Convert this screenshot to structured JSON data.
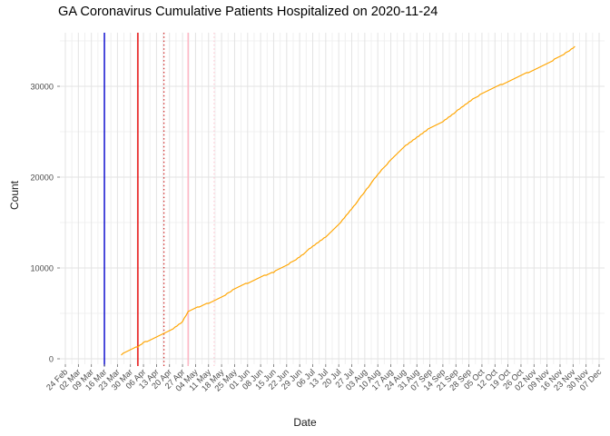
{
  "title": "GA Coronavirus Cumulative Patients Hospitalized on 2020-11-24",
  "chart_data": {
    "type": "line",
    "title": "GA Coronavirus Cumulative Patients Hospitalized on 2020-11-24",
    "xlabel": "Date",
    "ylabel": "Count",
    "x_range": [
      "2020-02-24",
      "2020-12-07"
    ],
    "ylim": [
      0,
      36000
    ],
    "grid": "major and minor, light gray, weekly x majors, y majors every 10000 with minors every 5000",
    "legend": "none",
    "x_tick_labels": [
      "24 Feb",
      "02 Mar",
      "09 Mar",
      "16 Mar",
      "23 Mar",
      "30 Mar",
      "06 Apr",
      "13 Apr",
      "20 Apr",
      "27 Apr",
      "04 May",
      "11 May",
      "18 May",
      "25 May",
      "01 Jun",
      "08 Jun",
      "15 Jun",
      "22 Jun",
      "29 Jun",
      "06 Jul",
      "13 Jul",
      "20 Jul",
      "27 Jul",
      "03 Aug",
      "10 Aug",
      "17 Aug",
      "24 Aug",
      "31 Aug",
      "07 Sep",
      "14 Sep",
      "21 Sep",
      "28 Sep",
      "05 Oct",
      "12 Oct",
      "19 Oct",
      "26 Oct",
      "02 Nov",
      "09 Nov",
      "16 Nov",
      "23 Nov",
      "30 Nov",
      "07 Dec"
    ],
    "y_tick_labels": [
      "0",
      "10000",
      "20000",
      "30000"
    ],
    "y_tick_values": [
      0,
      10000,
      20000,
      30000
    ],
    "y_minor_values": [
      5000,
      15000,
      25000,
      35000
    ],
    "series": [
      {
        "name": "cumulative-patients-hospitalized",
        "color": "#FFA500",
        "points": [
          [
            "2020-03-25",
            450
          ],
          [
            "2020-03-28",
            800
          ],
          [
            "2020-03-30",
            1050
          ],
          [
            "2020-04-03",
            1350
          ],
          [
            "2020-04-06",
            1800
          ],
          [
            "2020-04-10",
            2100
          ],
          [
            "2020-04-13",
            2450
          ],
          [
            "2020-04-17",
            2800
          ],
          [
            "2020-04-20",
            3100
          ],
          [
            "2020-04-24",
            3600
          ],
          [
            "2020-04-27",
            4100
          ],
          [
            "2020-04-30",
            5200
          ],
          [
            "2020-05-04",
            5600
          ],
          [
            "2020-05-08",
            5900
          ],
          [
            "2020-05-11",
            6150
          ],
          [
            "2020-05-15",
            6500
          ],
          [
            "2020-05-18",
            6800
          ],
          [
            "2020-05-22",
            7300
          ],
          [
            "2020-05-25",
            7700
          ],
          [
            "2020-06-01",
            8350
          ],
          [
            "2020-06-08",
            9000
          ],
          [
            "2020-06-15",
            9550
          ],
          [
            "2020-06-19",
            10000
          ],
          [
            "2020-06-22",
            10300
          ],
          [
            "2020-06-29",
            11200
          ],
          [
            "2020-07-06",
            12400
          ],
          [
            "2020-07-13",
            13450
          ],
          [
            "2020-07-20",
            14800
          ],
          [
            "2020-07-27",
            16500
          ],
          [
            "2020-08-03",
            18400
          ],
          [
            "2020-08-10",
            20300
          ],
          [
            "2020-08-17",
            21900
          ],
          [
            "2020-08-24",
            23300
          ],
          [
            "2020-08-31",
            24400
          ],
          [
            "2020-09-07",
            25400
          ],
          [
            "2020-09-14",
            26100
          ],
          [
            "2020-09-21",
            27200
          ],
          [
            "2020-09-28",
            28300
          ],
          [
            "2020-10-05",
            29200
          ],
          [
            "2020-10-12",
            29900
          ],
          [
            "2020-10-19",
            30500
          ],
          [
            "2020-10-26",
            31200
          ],
          [
            "2020-11-02",
            31800
          ],
          [
            "2020-11-09",
            32500
          ],
          [
            "2020-11-16",
            33300
          ],
          [
            "2020-11-20",
            33800
          ],
          [
            "2020-11-24",
            34400
          ]
        ]
      }
    ],
    "annotations": [
      {
        "name": "vline-blue-solid",
        "date": "2020-03-16",
        "color": "#0000CD",
        "style": "solid"
      },
      {
        "name": "vline-red-solid",
        "date": "2020-04-03",
        "color": "#E60000",
        "style": "solid"
      },
      {
        "name": "vline-red-dotted",
        "date": "2020-04-17",
        "color": "#D03030",
        "style": "dotted"
      },
      {
        "name": "vline-pink-solid",
        "date": "2020-04-30",
        "color": "#FFB3C1",
        "style": "solid"
      },
      {
        "name": "vline-pink-dotted",
        "date": "2020-05-14",
        "color": "#FFCCD6",
        "style": "dotted"
      }
    ]
  },
  "colors": {
    "background": "#FFFFFF",
    "grid_major": "#E3E3E3",
    "grid_minor": "#F0F0F0",
    "axis_text": "#4D4D4D",
    "line": "#FFA500"
  }
}
